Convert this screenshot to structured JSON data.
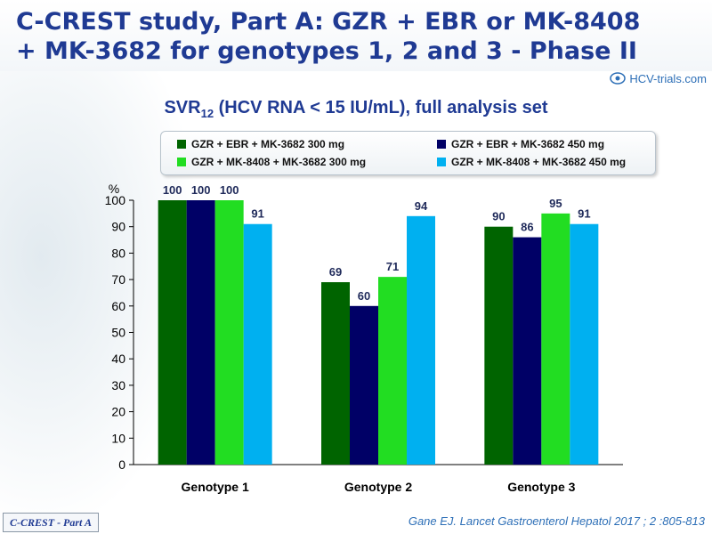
{
  "header": {
    "title_line1": "C-CREST study, Part A: GZR + EBR or MK-8408",
    "title_line2": "+ MK-3682 for genotypes 1, 2 and 3 - Phase II",
    "logo_text": "HCV-trials.com"
  },
  "subtitle": {
    "prefix": "SVR",
    "sub": "12",
    "suffix": " (HCV RNA < 15 IU/mL), full analysis set"
  },
  "footer": {
    "tag": "C-CREST - Part A",
    "citation": "Gane EJ. Lancet Gastroenterol Hepatol 2017 ; 2 :805-813"
  },
  "chart_data": {
    "type": "bar",
    "ylabel": "%",
    "ylim": [
      0,
      100
    ],
    "yticks": [
      0,
      10,
      20,
      30,
      40,
      50,
      60,
      70,
      80,
      90,
      100
    ],
    "grid": false,
    "legend_position": "top",
    "categories": [
      "Genotype 1",
      "Genotype 2",
      "Genotype 3"
    ],
    "series": [
      {
        "name": "GZR + EBR + MK-3682 300 mg",
        "color": "#006400",
        "values": [
          100,
          69,
          90
        ]
      },
      {
        "name": "GZR + EBR + MK-3682 450 mg",
        "color": "#000066",
        "values": [
          100,
          60,
          86
        ]
      },
      {
        "name": "GZR + MK-8408 + MK-3682 300 mg",
        "color": "#22dd22",
        "values": [
          100,
          71,
          95
        ]
      },
      {
        "name": "GZR + MK-8408 + MK-3682 450 mg",
        "color": "#00b0f0",
        "values": [
          91,
          94,
          91
        ]
      }
    ]
  }
}
